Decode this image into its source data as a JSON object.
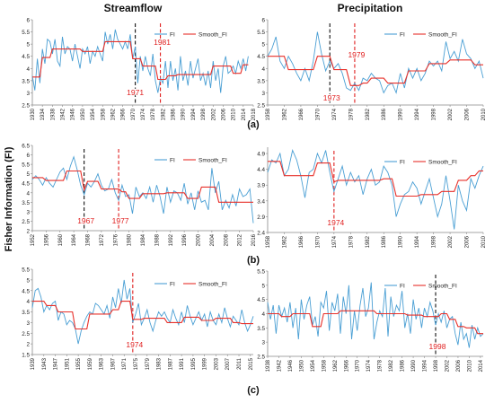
{
  "headers": {
    "left": "Streamflow",
    "right": "Precipitation"
  },
  "ylabel": "Fisher Information (FI)",
  "row_labels": [
    "(a)",
    "(b)",
    "(c)"
  ],
  "legend": {
    "fi": "FI",
    "smooth": "Smooth_FI"
  },
  "colors": {
    "fi": "#4a9fd4",
    "smooth": "#e8302a",
    "accent_line": "#e02020",
    "black_line": "#111111"
  },
  "chart_data": [
    {
      "type": "line",
      "id": "a-streamflow",
      "xlim": [
        1930,
        2018
      ],
      "ylim": [
        2.5,
        6
      ],
      "x_ticks": [
        1930,
        1934,
        1938,
        1942,
        1946,
        1950,
        1954,
        1958,
        1962,
        1966,
        1970,
        1974,
        1978,
        1982,
        1986,
        1990,
        1994,
        1998,
        2002,
        2006,
        2010,
        2014,
        2018
      ],
      "y_ticks": [
        2.5,
        3,
        3.5,
        4,
        4.5,
        5,
        5.5,
        6
      ],
      "x_start": 1930,
      "x_step": 1,
      "fi": [
        3.7,
        3.1,
        4.4,
        3.4,
        4.8,
        4.2,
        5.2,
        5.1,
        4.6,
        5.2,
        4.3,
        4.1,
        5.3,
        4.6,
        4.9,
        4.8,
        4.3,
        5.0,
        4.5,
        4.0,
        4.8,
        4.6,
        4.9,
        4.2,
        4.7,
        4.5,
        4.9,
        4.6,
        4.3,
        5.5,
        5.0,
        5.4,
        4.8,
        5.6,
        5.2,
        5.0,
        4.8,
        5.1,
        4.8,
        5.4,
        4.4,
        4.9,
        3.4,
        4.5,
        3.9,
        4.5,
        4.0,
        3.7,
        4.6,
        3.5,
        3.0,
        3.6,
        3.4,
        4.3,
        3.2,
        4.3,
        3.5,
        4.0,
        3.1,
        4.5,
        3.5,
        3.9,
        3.3,
        4.3,
        3.6,
        4.0,
        4.4,
        3.5,
        3.8,
        3.3,
        3.9,
        3.2,
        4.3,
        3.5,
        4.0,
        3.0,
        4.1,
        4.5,
        3.8,
        3.9,
        4.1,
        3.8,
        4.3,
        4.0,
        4.4,
        3.9,
        4.5
      ],
      "smooth": [
        3.65,
        3.65,
        3.65,
        3.65,
        4.45,
        4.45,
        4.45,
        4.45,
        4.8,
        4.8,
        4.8,
        4.8,
        4.8,
        4.8,
        4.8,
        4.8,
        4.8,
        4.8,
        4.8,
        4.8,
        4.7,
        4.7,
        4.7,
        4.7,
        4.7,
        4.7,
        4.7,
        4.7,
        4.7,
        5.1,
        5.1,
        5.1,
        5.1,
        5.1,
        5.1,
        5.1,
        5.1,
        5.1,
        5.1,
        5.1,
        4.4,
        4.4,
        4.4,
        4.4,
        4.1,
        4.1,
        4.1,
        4.1,
        4.1,
        4.1,
        3.55,
        3.55,
        3.55,
        3.55,
        3.7,
        3.7,
        3.7,
        3.7,
        3.75,
        3.75,
        3.75,
        3.75,
        3.75,
        3.75,
        3.75,
        3.75,
        3.75,
        3.75,
        3.75,
        3.75,
        3.75,
        3.75,
        4.1,
        4.1,
        4.1,
        4.1,
        4.1,
        4.1,
        4.1,
        4.1,
        3.8,
        3.8,
        3.8,
        3.8,
        4.15,
        4.15,
        4.15
      ],
      "change_lines": [
        {
          "x": 1971,
          "label": "1971",
          "style": "black"
        },
        {
          "x": 1981,
          "label": "1981",
          "style": "red"
        }
      ]
    },
    {
      "type": "line",
      "id": "a-precipitation",
      "xlim": [
        1958,
        2010
      ],
      "ylim": [
        2.5,
        6
      ],
      "x_ticks": [
        1958,
        1962,
        1966,
        1970,
        1974,
        1978,
        1982,
        1986,
        1990,
        1994,
        1998,
        2002,
        2006,
        2010
      ],
      "y_ticks": [
        2.5,
        3,
        3.5,
        4,
        4.5,
        5,
        5.5,
        6
      ],
      "x_start": 1958,
      "x_step": 1,
      "fi": [
        4.5,
        4.8,
        5.3,
        4.3,
        4.0,
        4.5,
        4.2,
        3.8,
        3.5,
        4.0,
        3.5,
        4.3,
        5.5,
        4.6,
        3.9,
        4.3,
        4.0,
        4.2,
        3.8,
        3.2,
        3.1,
        3.4,
        3.1,
        3.6,
        3.5,
        3.8,
        3.6,
        3.5,
        3.0,
        3.3,
        3.4,
        3.0,
        3.8,
        3.2,
        4.0,
        3.6,
        4.0,
        3.5,
        3.8,
        4.3,
        4.1,
        4.3,
        3.9,
        5.1,
        4.4,
        4.7,
        4.3,
        5.2,
        4.6,
        4.4,
        4.0,
        4.3,
        3.6
      ],
      "smooth": [
        4.5,
        4.5,
        4.5,
        4.5,
        4.5,
        3.95,
        3.95,
        3.95,
        3.95,
        3.95,
        3.95,
        3.95,
        4.5,
        4.5,
        4.5,
        4.5,
        3.95,
        3.95,
        3.95,
        3.95,
        3.3,
        3.3,
        3.3,
        3.4,
        3.4,
        3.6,
        3.6,
        3.6,
        3.6,
        3.4,
        3.4,
        3.4,
        3.4,
        3.4,
        3.9,
        3.9,
        3.9,
        3.9,
        3.9,
        4.2,
        4.2,
        4.2,
        4.2,
        4.2,
        4.35,
        4.35,
        4.35,
        4.35,
        4.35,
        4.35,
        4.15,
        4.15,
        4.15
      ],
      "change_lines": [
        {
          "x": 1973,
          "label": "1973",
          "style": "black"
        },
        {
          "x": 1979,
          "label": "1979",
          "style": "red"
        }
      ]
    },
    {
      "type": "line",
      "id": "b-streamflow",
      "xlim": [
        1952,
        2016
      ],
      "ylim": [
        2,
        6.5
      ],
      "x_ticks": [
        1952,
        1956,
        1960,
        1964,
        1968,
        1972,
        1976,
        1980,
        1984,
        1988,
        1992,
        1996,
        2000,
        2004,
        2008,
        2012,
        2016
      ],
      "y_ticks": [
        2,
        2.5,
        3,
        3.5,
        4,
        4.5,
        5,
        5.5,
        6,
        6.5
      ],
      "x_start": 1952,
      "x_step": 1,
      "fi": [
        4.7,
        4.9,
        4.7,
        4.4,
        4.8,
        4.5,
        4.3,
        4.7,
        5.1,
        5.3,
        4.7,
        5.4,
        5.9,
        5.2,
        4.4,
        3.9,
        4.5,
        4.3,
        4.6,
        5.0,
        4.4,
        4.1,
        4.2,
        4.7,
        4.0,
        3.6,
        4.4,
        3.8,
        3.9,
        2.9,
        4.3,
        3.8,
        4.0,
        3.7,
        4.3,
        3.5,
        4.4,
        3.8,
        2.9,
        4.3,
        3.5,
        4.1,
        4.0,
        3.6,
        4.5,
        3.4,
        4.0,
        3.1,
        4.1,
        3.5,
        3.6,
        3.1,
        5.3,
        4.0,
        4.6,
        3.1,
        3.6,
        3.2,
        3.9,
        3.3,
        4.2,
        3.8,
        3.9,
        4.2,
        2.4
      ],
      "smooth": [
        4.8,
        4.8,
        4.8,
        4.8,
        4.65,
        4.65,
        4.65,
        4.65,
        4.65,
        4.65,
        5.15,
        5.15,
        5.15,
        5.15,
        5.15,
        4.15,
        4.6,
        4.6,
        4.6,
        4.6,
        4.2,
        4.2,
        4.2,
        4.2,
        4.2,
        4.2,
        4.05,
        4.05,
        3.7,
        3.7,
        3.7,
        3.7,
        3.95,
        3.95,
        3.95,
        3.95,
        3.95,
        3.95,
        3.95,
        4.0,
        4.0,
        4.0,
        4.0,
        4.0,
        4.0,
        3.7,
        3.7,
        3.7,
        3.7,
        4.3,
        4.3,
        4.3,
        4.3,
        4.3,
        3.5,
        3.5,
        3.5,
        3.5,
        3.5,
        3.5,
        3.5,
        3.5,
        3.5,
        3.5,
        3.5
      ],
      "change_lines": [
        {
          "x": 1967,
          "label": "1967",
          "style": "black"
        },
        {
          "x": 1977,
          "label": "1977",
          "style": "red"
        }
      ]
    },
    {
      "type": "line",
      "id": "b-precipitation",
      "xlim": [
        1958,
        2010
      ],
      "ylim": [
        2.4,
        5.1
      ],
      "x_ticks": [
        1958,
        1962,
        1966,
        1970,
        1974,
        1978,
        1982,
        1986,
        1990,
        1994,
        1998,
        2002,
        2006,
        2010
      ],
      "y_ticks": [
        2.4,
        2.9,
        3.4,
        3.9,
        4.4,
        4.9
      ],
      "x_start": 1958,
      "x_step": 1,
      "fi": [
        4.3,
        4.7,
        4.6,
        4.9,
        4.2,
        4.4,
        5.0,
        4.7,
        4.2,
        3.5,
        4.3,
        4.4,
        4.9,
        4.6,
        5.0,
        4.3,
        3.7,
        4.1,
        4.5,
        3.9,
        4.3,
        4.0,
        4.2,
        3.6,
        4.1,
        4.4,
        3.9,
        4.0,
        4.5,
        4.3,
        3.9,
        2.9,
        3.3,
        3.6,
        3.7,
        4.0,
        3.8,
        3.3,
        3.7,
        4.1,
        3.5,
        2.9,
        3.3,
        4.2,
        3.4,
        2.5,
        3.9,
        3.4,
        3.1,
        4.1,
        3.8,
        4.2,
        4.5
      ],
      "smooth": [
        4.65,
        4.65,
        4.65,
        4.65,
        4.2,
        4.2,
        4.2,
        4.2,
        4.2,
        4.2,
        4.2,
        4.2,
        4.6,
        4.6,
        4.6,
        4.6,
        4.0,
        4.05,
        4.05,
        4.05,
        4.05,
        4.05,
        4.05,
        4.05,
        4.05,
        4.05,
        4.05,
        4.05,
        4.1,
        4.1,
        4.1,
        3.55,
        3.55,
        3.55,
        3.55,
        3.55,
        3.55,
        3.6,
        3.6,
        3.6,
        3.6,
        3.6,
        3.7,
        3.7,
        3.7,
        3.7,
        4.05,
        4.05,
        4.05,
        4.2,
        4.2,
        4.35,
        4.35
      ],
      "change_lines": [
        {
          "x": 1974,
          "label": "1974",
          "style": "red"
        }
      ]
    },
    {
      "type": "line",
      "id": "c-streamflow",
      "xlim": [
        1939,
        2016
      ],
      "ylim": [
        1.5,
        5.5
      ],
      "x_ticks": [
        1939,
        1943,
        1947,
        1951,
        1955,
        1959,
        1963,
        1967,
        1971,
        1975,
        1979,
        1983,
        1987,
        1991,
        1995,
        1999,
        2003,
        2007,
        2011,
        2015
      ],
      "y_ticks": [
        1.5,
        2,
        2.5,
        3,
        3.5,
        4,
        4.5,
        5,
        5.5
      ],
      "x_start": 1939,
      "x_step": 1,
      "fi": [
        3.7,
        4.5,
        4.6,
        4.2,
        3.5,
        3.8,
        3.6,
        3.9,
        4.0,
        3.1,
        3.5,
        3.4,
        2.9,
        3.1,
        3.0,
        2.7,
        2.0,
        2.6,
        3.0,
        3.3,
        3.5,
        3.4,
        3.9,
        3.8,
        3.6,
        3.4,
        3.8,
        3.2,
        4.2,
        3.7,
        4.6,
        3.9,
        5.0,
        4.1,
        4.6,
        3.0,
        3.4,
        3.9,
        2.9,
        3.2,
        3.6,
        3.0,
        2.6,
        3.1,
        3.5,
        3.3,
        3.5,
        3.2,
        3.0,
        3.6,
        3.2,
        2.9,
        3.5,
        3.0,
        3.8,
        3.3,
        2.9,
        3.2,
        3.5,
        3.1,
        3.4,
        2.8,
        3.5,
        3.1,
        2.9,
        3.4,
        3.0,
        3.7,
        3.2,
        2.8,
        3.3,
        3.1,
        2.9,
        3.6,
        3.0,
        2.6,
        2.9,
        3.3
      ],
      "smooth": [
        4.0,
        4.0,
        4.0,
        4.0,
        4.0,
        3.8,
        3.8,
        3.8,
        3.8,
        3.5,
        3.5,
        3.5,
        3.5,
        3.5,
        3.5,
        2.7,
        2.7,
        2.7,
        2.7,
        2.7,
        3.4,
        3.4,
        3.4,
        3.4,
        3.4,
        3.4,
        3.4,
        3.4,
        3.6,
        3.6,
        3.6,
        4.0,
        4.0,
        4.0,
        4.0,
        3.15,
        3.15,
        3.15,
        3.15,
        3.2,
        3.2,
        3.2,
        3.2,
        3.2,
        3.2,
        3.2,
        3.2,
        3.0,
        3.0,
        3.0,
        3.0,
        3.0,
        3.0,
        3.25,
        3.25,
        3.25,
        3.25,
        3.25,
        3.25,
        3.1,
        3.1,
        3.1,
        3.1,
        3.1,
        3.2,
        3.2,
        3.2,
        3.2,
        3.2,
        3.2,
        3.0,
        3.0,
        3.0,
        2.95,
        2.95,
        2.95,
        2.95,
        2.95
      ],
      "change_lines": [
        {
          "x": 1974,
          "label": "1974",
          "style": "red"
        }
      ]
    },
    {
      "type": "line",
      "id": "c-precipitation",
      "xlim": [
        1938,
        2015
      ],
      "ylim": [
        2.5,
        5.5
      ],
      "x_ticks": [
        1938,
        1942,
        1946,
        1950,
        1954,
        1958,
        1962,
        1966,
        1970,
        1974,
        1978,
        1982,
        1986,
        1990,
        1994,
        1998,
        2002,
        2006,
        2010,
        2014
      ],
      "y_ticks": [
        2.5,
        3,
        3.5,
        4,
        4.5,
        5,
        5.5
      ],
      "x_start": 1938,
      "x_step": 1,
      "fi": [
        4.4,
        3.8,
        4.3,
        3.3,
        4.3,
        3.9,
        4.2,
        3.7,
        4.4,
        3.5,
        4.2,
        3.1,
        4.5,
        3.8,
        4.3,
        4.6,
        3.6,
        3.9,
        3.2,
        4.4,
        4.2,
        4.8,
        3.4,
        4.4,
        4.1,
        4.7,
        3.3,
        4.6,
        4.0,
        5.0,
        3.1,
        4.1,
        3.4,
        4.3,
        4.9,
        3.9,
        4.2,
        5.1,
        3.1,
        3.7,
        4.1,
        3.9,
        4.9,
        3.2,
        4.6,
        3.9,
        4.3,
        4.1,
        4.8,
        3.5,
        4.0,
        3.3,
        4.5,
        3.8,
        4.2,
        3.5,
        4.2,
        3.9,
        4.4,
        4.1,
        3.6,
        4.0,
        3.7,
        4.1,
        3.5,
        3.8,
        3.9,
        3.3,
        2.9,
        3.7,
        3.1,
        3.3,
        2.8,
        3.6,
        3.1,
        3.5,
        3.2,
        3.3
      ],
      "smooth": [
        4.0,
        4.0,
        4.0,
        4.0,
        4.0,
        3.9,
        3.9,
        3.9,
        3.9,
        4.0,
        4.0,
        4.0,
        4.0,
        4.0,
        4.0,
        4.0,
        3.55,
        3.55,
        3.55,
        3.55,
        4.0,
        4.0,
        4.0,
        4.0,
        4.0,
        4.0,
        4.1,
        4.1,
        4.1,
        4.1,
        4.1,
        4.1,
        4.1,
        4.1,
        4.1,
        4.1,
        4.1,
        4.1,
        4.1,
        4.0,
        4.0,
        4.0,
        4.0,
        4.0,
        4.0,
        4.0,
        4.0,
        4.0,
        4.0,
        4.0,
        3.95,
        3.95,
        3.95,
        3.95,
        3.95,
        3.95,
        3.9,
        3.9,
        3.9,
        3.9,
        3.9,
        3.9,
        4.0,
        4.0,
        4.0,
        3.8,
        3.8,
        3.8,
        3.55,
        3.55,
        3.55,
        3.5,
        3.5,
        3.5,
        3.5,
        3.3,
        3.3,
        3.3
      ],
      "change_lines": [
        {
          "x": 1998,
          "label": "1998",
          "style": "black"
        }
      ]
    }
  ]
}
